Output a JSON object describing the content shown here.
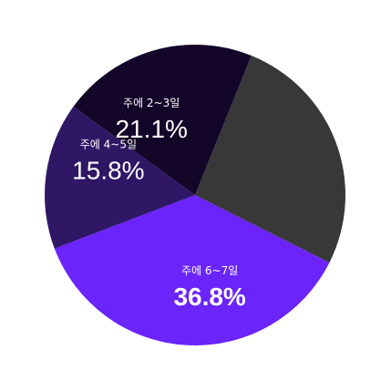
{
  "chart_data": {
    "type": "pie",
    "title": "",
    "slices": [
      {
        "label": "",
        "value": 26.3,
        "color": "#383838",
        "labelled": false
      },
      {
        "label": "주에 6~7일",
        "value": 36.8,
        "display": "36.8%",
        "color": "#6b24fa",
        "labelled": true,
        "bold": true
      },
      {
        "label": "주에 4~5일",
        "value": 15.8,
        "display": "15.8%",
        "color": "#2f1765",
        "labelled": true,
        "bold": false
      },
      {
        "label": "주에 2~3일",
        "value": 21.1,
        "display": "21.1%",
        "color": "#130629",
        "labelled": true,
        "bold": false
      }
    ]
  }
}
